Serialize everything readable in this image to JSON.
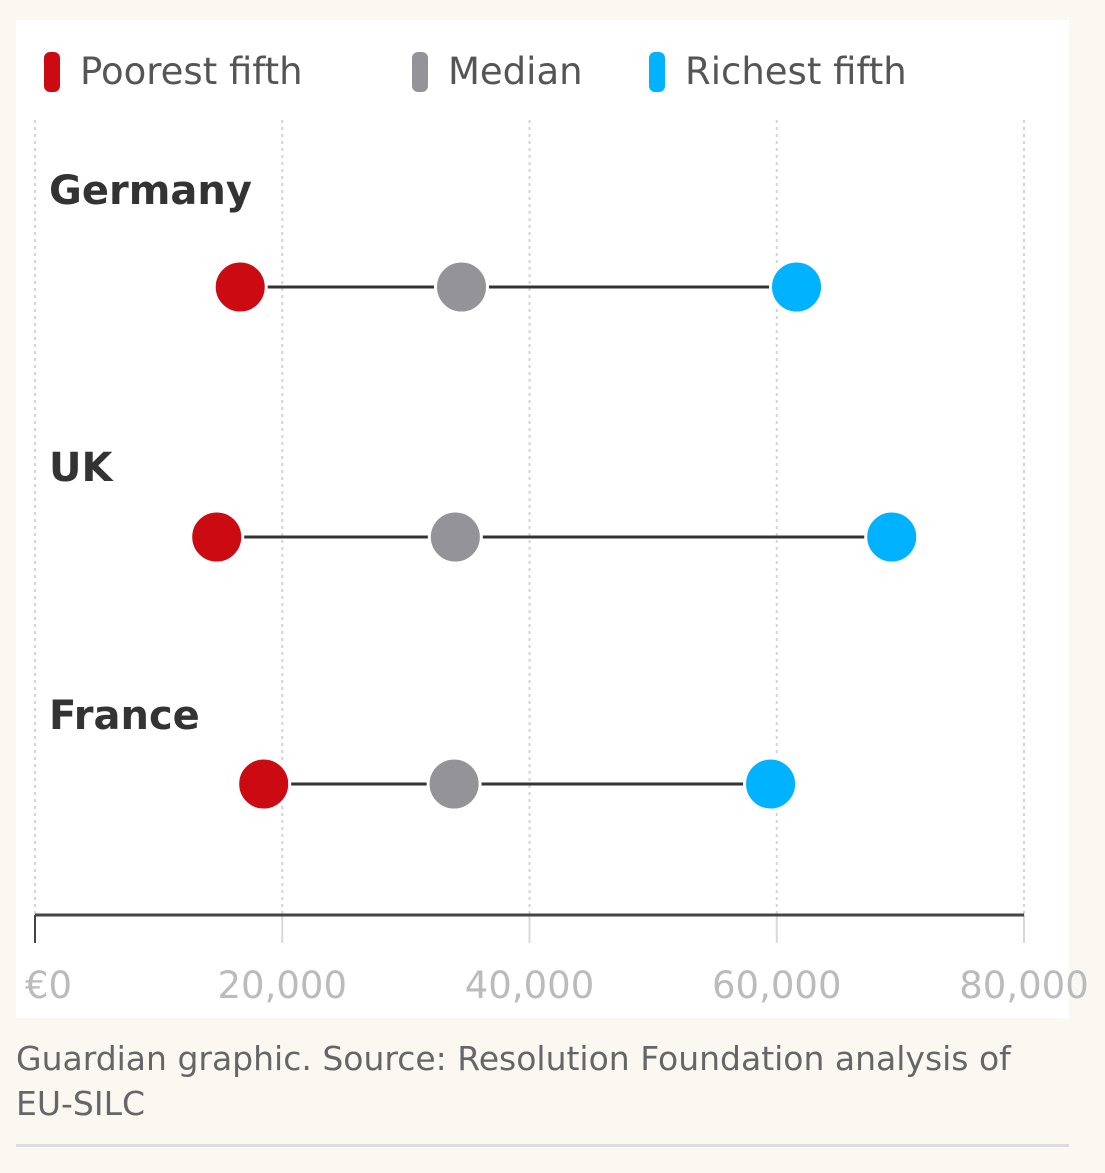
{
  "chart_data": {
    "type": "dot-range",
    "title": "",
    "xlabel": "",
    "ylabel": "",
    "xlim": [
      0,
      80000
    ],
    "x_ticks": [
      0,
      20000,
      40000,
      60000,
      80000
    ],
    "x_tick_labels": [
      "€0",
      "20,000",
      "40,000",
      "60,000",
      "80,000"
    ],
    "grid": "vertical dotted",
    "legend_position": "top-left",
    "series": [
      {
        "name": "Poorest fifth",
        "color": "#cc0a11"
      },
      {
        "name": "Median",
        "color": "#939398"
      },
      {
        "name": "Richest fifth",
        "color": "#00b2ff"
      }
    ],
    "categories": [
      "Germany",
      "UK",
      "France"
    ],
    "values": {
      "Germany": [
        16600,
        34500,
        61600
      ],
      "UK": [
        14700,
        34000,
        69300
      ],
      "France": [
        18500,
        33900,
        59500
      ]
    }
  },
  "caption": "Guardian graphic. Source: Resolution Foundation analysis of EU-SILC"
}
